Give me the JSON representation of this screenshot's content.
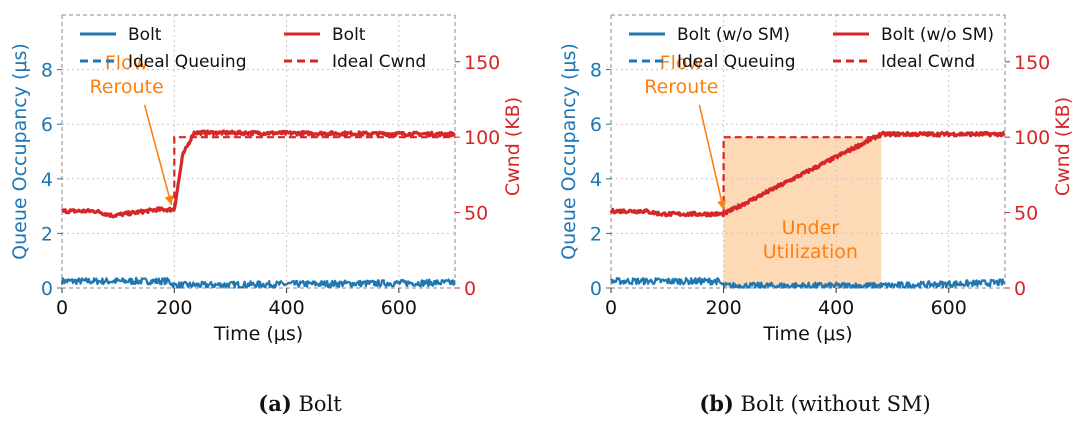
{
  "colors": {
    "queue": "#1f77b4",
    "cwnd": "#d62728",
    "annotation": "#ff7f0e",
    "underutil_fill": "#fdd9b5",
    "grid": "#c8c8c8",
    "frame": "#888888",
    "text": "#111111"
  },
  "chart_data": [
    {
      "type": "line",
      "caption": {
        "label": "(a)",
        "text": " Bolt"
      },
      "xlabel": "Time (μs)",
      "ylabel": "Queue Occupancy (μs)",
      "y2label": "Cwnd (KB)",
      "xlim": [
        0,
        700
      ],
      "ylim": [
        0,
        10
      ],
      "y2lim": [
        0,
        181
      ],
      "xticks": [
        0,
        200,
        400,
        600
      ],
      "yticks": [
        0,
        2,
        4,
        6,
        8
      ],
      "y2ticks": [
        0,
        50,
        100,
        150
      ],
      "legend": [
        {
          "label": "Bolt",
          "series": "queue",
          "style": "solid"
        },
        {
          "label": "Bolt",
          "series": "cwnd",
          "style": "solid"
        },
        {
          "label": "Ideal Queuing",
          "series": "ideal_queue",
          "style": "dashed"
        },
        {
          "label": "Ideal Cwnd",
          "series": "ideal_cwnd",
          "style": "dashed"
        }
      ],
      "series": [
        {
          "name": "Queue (Bolt)",
          "axis": "left",
          "color": "queue",
          "x": [
            0,
            100,
            190,
            200,
            700
          ],
          "y": [
            0.25,
            0.25,
            0.25,
            0.1,
            0.2
          ],
          "noise": 0.12
        },
        {
          "name": "Cwnd (Bolt)",
          "axis": "right",
          "color": "cwnd",
          "x": [
            0,
            60,
            90,
            130,
            170,
            200,
            215,
            235,
            700
          ],
          "y": [
            51,
            51,
            48,
            50,
            52,
            52,
            88,
            103,
            102
          ],
          "noise": 1.2
        },
        {
          "name": "Ideal Cwnd",
          "axis": "right",
          "color": "cwnd",
          "dashed": true,
          "x": [
            200,
            200,
            220,
            700
          ],
          "y": [
            52,
            100,
            100,
            100
          ]
        }
      ],
      "annotations": [
        {
          "text": [
            "Flow",
            "Reroute"
          ],
          "xy": [
            195,
            55
          ],
          "xytext": [
            115,
            140
          ]
        }
      ]
    },
    {
      "type": "line",
      "caption": {
        "label": "(b)",
        "text": " Bolt (without SM)"
      },
      "xlabel": "Time (μs)",
      "ylabel": "Queue Occupancy (μs)",
      "y2label": "Cwnd (KB)",
      "xlim": [
        0,
        700
      ],
      "ylim": [
        0,
        10
      ],
      "y2lim": [
        0,
        181
      ],
      "xticks": [
        0,
        200,
        400,
        600
      ],
      "yticks": [
        0,
        2,
        4,
        6,
        8
      ],
      "y2ticks": [
        0,
        50,
        100,
        150
      ],
      "legend": [
        {
          "label": "Bolt (w/o SM)",
          "series": "queue",
          "style": "solid"
        },
        {
          "label": "Bolt (w/o SM)",
          "series": "cwnd",
          "style": "solid"
        },
        {
          "label": "Ideal Queuing",
          "series": "ideal_queue",
          "style": "dashed"
        },
        {
          "label": "Ideal Cwnd",
          "series": "ideal_cwnd",
          "style": "dashed"
        }
      ],
      "shaded_region": {
        "x": [
          200,
          480
        ],
        "label": [
          "Under",
          "Utilization"
        ]
      },
      "series": [
        {
          "name": "Queue (Bolt w/o SM)",
          "axis": "left",
          "color": "queue",
          "x": [
            0,
            190,
            200,
            480,
            700
          ],
          "y": [
            0.25,
            0.25,
            0.08,
            0.08,
            0.2
          ],
          "noise": 0.12
        },
        {
          "name": "Cwnd (Bolt w/o SM)",
          "axis": "right",
          "color": "cwnd",
          "x": [
            0,
            60,
            90,
            150,
            200,
            480,
            700
          ],
          "y": [
            51,
            51,
            49,
            49,
            49,
            102,
            102
          ],
          "noise": 1.2
        },
        {
          "name": "Ideal Cwnd",
          "axis": "right",
          "color": "cwnd",
          "dashed": true,
          "x": [
            200,
            200,
            480
          ],
          "y": [
            49,
            100,
            100
          ]
        }
      ],
      "annotations": [
        {
          "text": [
            "Flow",
            "Reroute"
          ],
          "xy": [
            200,
            52
          ],
          "xytext": [
            125,
            140
          ]
        }
      ]
    }
  ]
}
